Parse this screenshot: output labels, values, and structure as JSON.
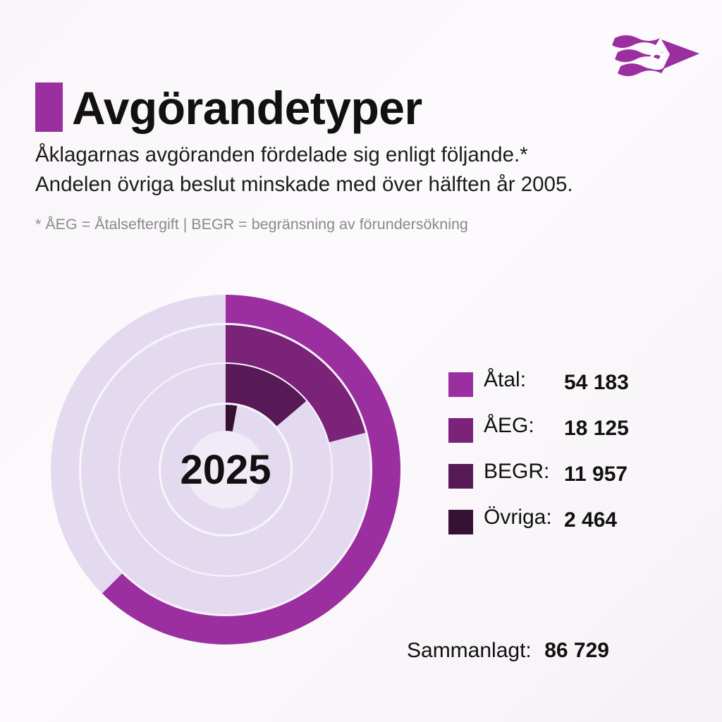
{
  "title": "Avgörandetyper",
  "subtitle_lines": [
    "Åklagarnas avgöranden fördelade sig enligt följande.*",
    "Andelen övriga beslut minskade med över hälften år 2005."
  ],
  "footnote": "* ÅEG = Åtalseftergift | BEGR = begränsning av förundersökning",
  "colors": {
    "accent": "#9b2fa0",
    "track": "#e4daf0",
    "center": "#f0ebf6"
  },
  "total": {
    "label": "Sammanlagt:",
    "value": "86 729"
  },
  "chart_data": {
    "type": "pie",
    "subtype": "radial-bar",
    "center_label": "2025",
    "total": 86729,
    "series": [
      {
        "name": "Åtal:",
        "value": 54183,
        "display": "54 183",
        "color": "#9b2fa0"
      },
      {
        "name": "ÅEG:",
        "value": 18125,
        "display": "18 125",
        "color": "#7b2379"
      },
      {
        "name": "BEGR:",
        "value": 11957,
        "display": "11 957",
        "color": "#571a57"
      },
      {
        "name": "Övriga:",
        "value": 2464,
        "display": "2 464",
        "color": "#371036"
      }
    ]
  }
}
